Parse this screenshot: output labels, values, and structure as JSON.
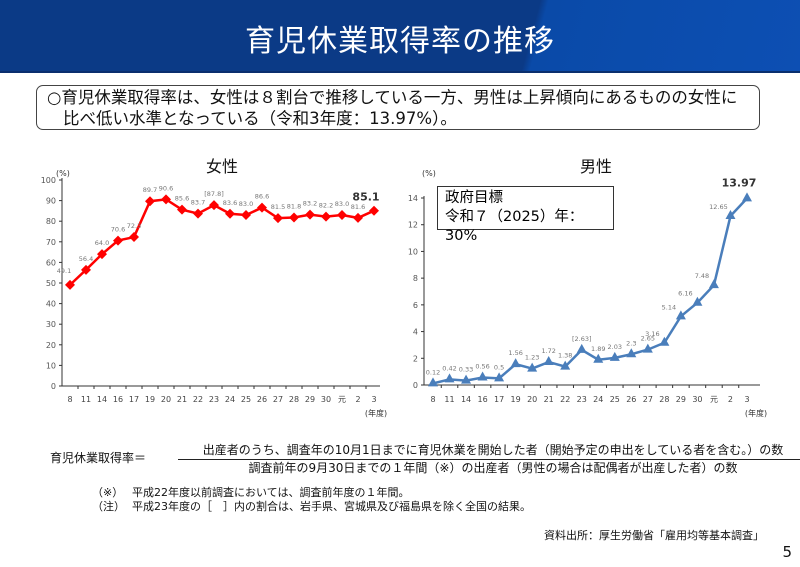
{
  "header": {
    "title": "育児休業取得率の推移"
  },
  "summary": {
    "line1": "○育児休業取得率は、女性は８割台で推移している一方、男性は上昇傾向にあるものの女性に",
    "line2": "比べ低い水準となっている（令和3年度：13.97%）。"
  },
  "chart_data": [
    {
      "type": "line",
      "title": "女性",
      "ylabel": "(%)",
      "xlabel": "(年度)",
      "categories": [
        "8",
        "11",
        "14",
        "16",
        "17",
        "19",
        "20",
        "21",
        "22",
        "23",
        "24",
        "25",
        "26",
        "27",
        "28",
        "29",
        "30",
        "元",
        "2",
        "3"
      ],
      "values": [
        49.1,
        56.4,
        64.0,
        70.6,
        72.3,
        89.7,
        90.6,
        85.6,
        83.7,
        87.8,
        83.6,
        83.0,
        86.6,
        81.5,
        81.8,
        83.2,
        82.2,
        83.0,
        81.6,
        85.1
      ],
      "data_labels": [
        "49.1",
        "56.4",
        "64.0",
        "70.6",
        "72.3",
        "89.7",
        "90.6",
        "85.6",
        "83.7",
        "[87.8]",
        "83.6",
        "83.0",
        "86.6",
        "81.5",
        "81.8",
        "83.2",
        "82.2",
        "83.0",
        "81.6",
        "85.1"
      ],
      "ylim": [
        0,
        100
      ],
      "yticks": [
        "0",
        "10",
        "20",
        "30",
        "40",
        "50",
        "60",
        "70",
        "80",
        "90",
        "100"
      ],
      "color": "#ff0000",
      "marker": "diamond",
      "grid": false
    },
    {
      "type": "line",
      "title": "男性",
      "ylabel": "(%)",
      "xlabel": "(年度)",
      "categories": [
        "8",
        "11",
        "14",
        "16",
        "17",
        "19",
        "20",
        "21",
        "22",
        "23",
        "24",
        "25",
        "26",
        "27",
        "28",
        "29",
        "30",
        "元",
        "2",
        "3"
      ],
      "values": [
        0.12,
        0.42,
        0.33,
        0.56,
        0.5,
        1.56,
        1.23,
        1.72,
        1.38,
        2.63,
        1.89,
        2.03,
        2.3,
        2.65,
        3.16,
        5.14,
        6.16,
        7.48,
        12.65,
        13.97
      ],
      "data_labels": [
        "0.12",
        "0.42",
        "0.33",
        "0.56",
        "0.5",
        "1.56",
        "1.23",
        "1.72",
        "1.38",
        "[2.63]",
        "1.89",
        "2.03",
        "2.3",
        "2.65",
        "3.16",
        "5.14",
        "6.16",
        "7.48",
        "12.65",
        "13.97"
      ],
      "ylim": [
        0,
        14
      ],
      "yticks": [
        "0",
        "2",
        "4",
        "6",
        "8",
        "10",
        "12",
        "14"
      ],
      "color": "#4a7ebb",
      "marker": "triangle",
      "grid": false,
      "annotation": {
        "line1": "政府目標",
        "line2": "令和７（2025）年：30%"
      }
    }
  ],
  "formula": {
    "lhs": "育児休業取得率＝",
    "numerator": "出産者のうち、調査年の10月1日までに育児休業を開始した者（開始予定の申出をしている者を含む。）の数",
    "denominator": "調査前年の9月30日までの１年間（※）の出産者（男性の場合は配偶者が出産した者）の数"
  },
  "notes": [
    {
      "mark": "（※）",
      "text": "平成22年度以前調査においては、調査前年度の１年間。"
    },
    {
      "mark": "（注）",
      "text": "平成23年度の［　］内の割合は、岩手県、宮城県及び福島県を除く全国の結果。"
    }
  ],
  "source": "資料出所：厚生労働省「雇用均等基本調査」",
  "page_number": "5"
}
